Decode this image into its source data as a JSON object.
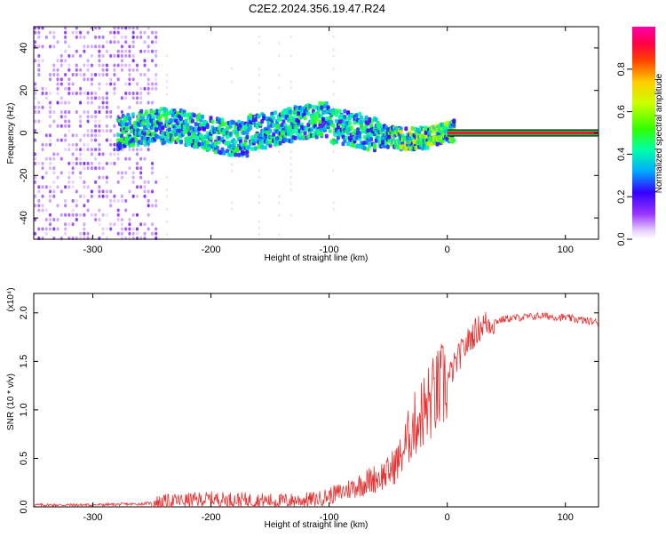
{
  "title": "C2E2.2024.356.19.47.R24",
  "chart_data": [
    {
      "type": "heatmap",
      "xlabel": "Height of straight line (km)",
      "ylabel": "Frequency (Hz)",
      "xlim": [
        -350,
        128
      ],
      "ylim": [
        -50,
        50
      ],
      "xticks": [
        -300,
        -200,
        -100,
        0,
        100
      ],
      "yticks": [
        -40,
        -20,
        0,
        20,
        40
      ],
      "colorbar": {
        "label": "Normalized spectral amplitude",
        "range": [
          0.0,
          1.0
        ],
        "ticks": [
          0.0,
          0.2,
          0.4,
          0.6,
          0.8
        ],
        "tick_labels": [
          "0.0",
          "0.2",
          "0.4",
          "0.6",
          "0.8"
        ]
      },
      "features": {
        "strong_line_frequency_hz": 0,
        "strong_line_from_km": 0,
        "diffuse_noise_until_km": -245,
        "wander_band_from_km": -280
      }
    },
    {
      "type": "line",
      "xlabel": "Height of straight line (km)",
      "ylabel": "SNR (10 * v/v)",
      "scale_label": "(x10⁴)",
      "xlim": [
        -350,
        128
      ],
      "ylim": [
        0,
        2.2
      ],
      "xticks": [
        -300,
        -200,
        -100,
        0,
        100
      ],
      "yticks": [
        0.0,
        0.5,
        1.0,
        1.5,
        2.0
      ],
      "ytick_labels": [
        "0.0",
        "0.5",
        "1.0",
        "1.5",
        "2.0"
      ],
      "color": "#e83030",
      "trend": {
        "x": [
          -350,
          -300,
          -260,
          -230,
          -200,
          -170,
          -140,
          -110,
          -90,
          -70,
          -50,
          -40,
          -30,
          -20,
          -10,
          0,
          10,
          20,
          30,
          50,
          80,
          100,
          128
        ],
        "y": [
          0.02,
          0.02,
          0.03,
          0.06,
          0.08,
          0.07,
          0.06,
          0.08,
          0.15,
          0.25,
          0.35,
          0.5,
          0.8,
          1.0,
          1.15,
          1.3,
          1.55,
          1.75,
          1.88,
          1.94,
          1.97,
          1.95,
          1.9
        ]
      }
    }
  ]
}
